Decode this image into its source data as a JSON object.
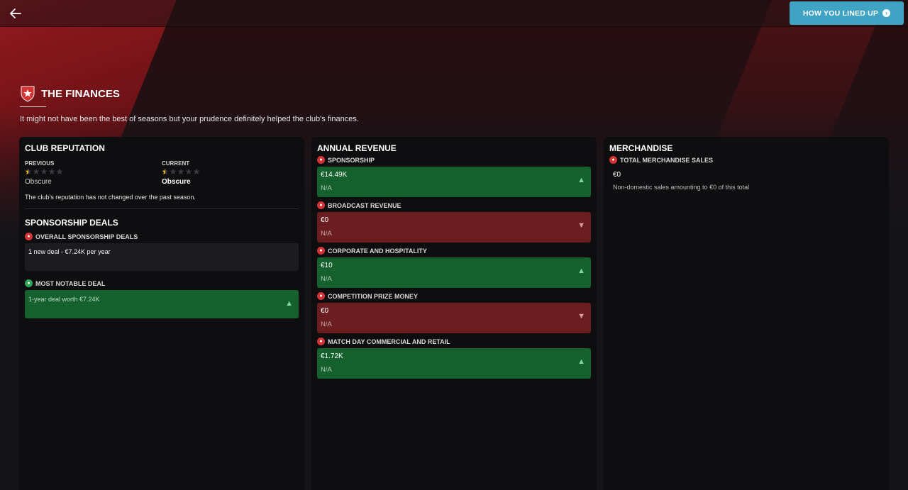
{
  "header": {
    "title": "THE FINANCES",
    "subtitle": "It might not have been the best of seasons but your prudence definitely helped the club's finances.",
    "lined_up_label": "HOW YOU LINED UP"
  },
  "colors": {
    "accent_red": "#d63434",
    "positive_green": "#14612e",
    "negative_red": "#6b1d1f",
    "button_blue": "#3fa3c4",
    "star_gold": "#e8b21c"
  },
  "reputation": {
    "title": "CLUB REPUTATION",
    "previous_label": "PREVIOUS",
    "previous_value": "Obscure",
    "previous_stars": 0.5,
    "current_label": "CURRENT",
    "current_value": "Obscure",
    "current_stars": 0.5,
    "max_stars": 5,
    "note": "The club's reputation has not changed over the past season."
  },
  "sponsorship": {
    "title": "SPONSORSHIP DEALS",
    "overall_label": "OVERALL SPONSORSHIP DEALS",
    "overall_value": "1 new deal - €7.24K per year",
    "notable_label": "MOST NOTABLE DEAL",
    "notable_value": "1-year deal worth €7.24K"
  },
  "revenue": {
    "title": "ANNUAL REVENUE",
    "items": [
      {
        "label": "SPONSORSHIP",
        "value": "€14.49K",
        "sub": "N/A",
        "trend": "up",
        "icon": "sponsorship-icon"
      },
      {
        "label": "BROADCAST REVENUE",
        "value": "€0",
        "sub": "N/A",
        "trend": "down",
        "icon": "broadcast-icon"
      },
      {
        "label": "CORPORATE AND HOSPITALITY",
        "value": "€10",
        "sub": "N/A",
        "trend": "up",
        "icon": "hospitality-icon"
      },
      {
        "label": "COMPETITION PRIZE MONEY",
        "value": "€0",
        "sub": "N/A",
        "trend": "down",
        "icon": "trophy-icon"
      },
      {
        "label": "MATCH DAY COMMERCIAL AND RETAIL",
        "value": "€1.72K",
        "sub": "N/A",
        "trend": "up",
        "icon": "shirt-icon"
      }
    ]
  },
  "merchandise": {
    "title": "MERCHANDISE",
    "total_label": "TOTAL MERCHANDISE SALES",
    "total_value": "€0",
    "description": "Non-domestic sales amounting to €0 of this total"
  }
}
